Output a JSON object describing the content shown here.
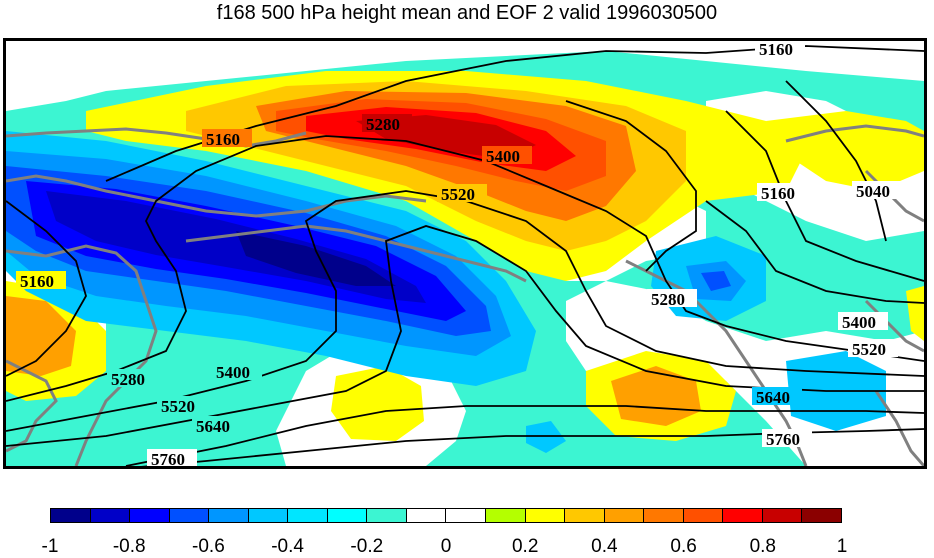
{
  "title": "f168 500 hPa height mean and EOF 2 valid 1996030500",
  "contour_labels": [
    "5160",
    "5280",
    "5400",
    "5520",
    "5040",
    "5160",
    "5160",
    "5280",
    "5400",
    "5520",
    "5640",
    "5760",
    "5160",
    "5280",
    "5400",
    "5520",
    "5640",
    "5760"
  ],
  "colorbar": {
    "colors": [
      "#00008b",
      "#0000c8",
      "#0000ff",
      "#0050ff",
      "#0096ff",
      "#00c8ff",
      "#00e6ff",
      "#00ffff",
      "#3cf5d2",
      "#ffffff",
      "#ffffff",
      "#b4ff00",
      "#ffff00",
      "#ffc800",
      "#ffa000",
      "#ff7800",
      "#ff5000",
      "#ff0000",
      "#c80000",
      "#8b0000"
    ],
    "tick_labels": [
      "-1",
      "-0.8",
      "-0.6",
      "-0.4",
      "-0.2",
      "0",
      "0.2",
      "0.4",
      "0.6",
      "0.8",
      "1"
    ]
  },
  "colors": {
    "coastline": "#808080",
    "contour": "#000000"
  }
}
